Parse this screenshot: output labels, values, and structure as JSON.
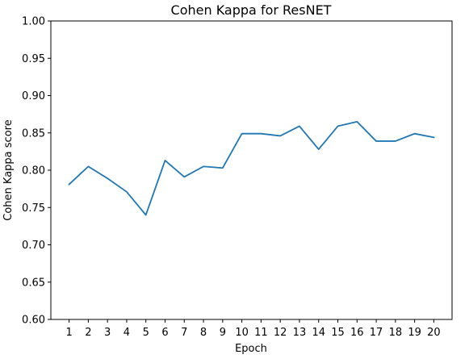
{
  "chart_data": {
    "type": "line",
    "title": "Cohen Kappa for ResNET",
    "xlabel": "Epoch",
    "ylabel": "Cohen Kappa score",
    "x": [
      1,
      2,
      3,
      4,
      5,
      6,
      7,
      8,
      9,
      10,
      11,
      12,
      13,
      14,
      15,
      16,
      17,
      18,
      19,
      20
    ],
    "x_tick_labels": [
      "1",
      "2",
      "3",
      "4",
      "5",
      "6",
      "7",
      "8",
      "9",
      "10",
      "11",
      "12",
      "13",
      "14",
      "15",
      "16",
      "17",
      "18",
      "19",
      "20"
    ],
    "ylim": [
      0.6,
      1.0
    ],
    "y_ticks": [
      0.6,
      0.65,
      0.7,
      0.75,
      0.8,
      0.85,
      0.9,
      0.95,
      1.0
    ],
    "y_tick_labels": [
      "0.60",
      "0.65",
      "0.70",
      "0.75",
      "0.80",
      "0.85",
      "0.90",
      "0.95",
      "1.00"
    ],
    "grid": false,
    "series": [
      {
        "values": [
          0.781,
          0.805,
          0.789,
          0.771,
          0.74,
          0.813,
          0.791,
          0.805,
          0.803,
          0.849,
          0.849,
          0.846,
          0.859,
          0.828,
          0.859,
          0.865,
          0.839,
          0.839,
          0.849,
          0.844
        ],
        "color": "#1f77b4"
      }
    ]
  }
}
